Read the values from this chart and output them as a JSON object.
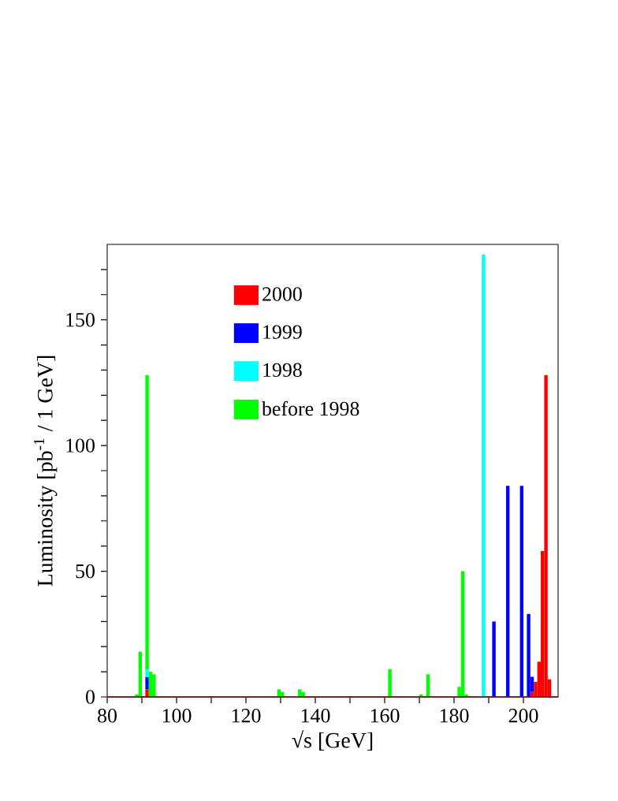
{
  "chart_data": {
    "type": "bar",
    "stacked": true,
    "xlabel": "√s  [GeV]",
    "ylabel": "Luminosity  [pb$^{-1}$ / 1 GeV]",
    "x": [
      88.5,
      89.5,
      91.5,
      92.5,
      93.5,
      129.5,
      130.5,
      135.5,
      136.5,
      161.5,
      170.5,
      172.5,
      181.5,
      182.5,
      183.5,
      188.5,
      191.5,
      195.5,
      199.5,
      201.5,
      202.5,
      203.5,
      204.5,
      205.5,
      206.5,
      207.5
    ],
    "series": [
      {
        "name": "2000",
        "color": "#ff0000",
        "values": [
          null,
          null,
          3,
          null,
          null,
          null,
          null,
          null,
          null,
          null,
          null,
          null,
          null,
          null,
          null,
          null,
          null,
          null,
          null,
          null,
          2,
          6,
          14,
          58,
          128,
          7
        ]
      },
      {
        "name": "1999",
        "color": "#0000ff",
        "values": [
          null,
          null,
          5,
          null,
          null,
          null,
          null,
          null,
          null,
          null,
          null,
          null,
          null,
          null,
          null,
          null,
          30,
          84,
          84,
          33,
          6,
          null,
          null,
          null,
          null,
          null
        ]
      },
      {
        "name": "1998",
        "color": "#00ffff",
        "values": [
          null,
          null,
          3,
          null,
          null,
          null,
          null,
          null,
          null,
          null,
          null,
          null,
          null,
          null,
          null,
          176,
          null,
          null,
          null,
          null,
          null,
          null,
          null,
          null,
          null,
          null
        ]
      },
      {
        "name": "before 1998",
        "color": "#00ff00",
        "values": [
          1,
          18,
          117,
          10,
          9,
          3,
          2,
          3,
          2,
          11,
          1,
          9,
          4,
          50,
          1,
          null,
          null,
          null,
          null,
          null,
          null,
          null,
          null,
          null,
          null,
          null
        ]
      }
    ],
    "xlim": [
      80,
      210
    ],
    "ylim": [
      0,
      180
    ],
    "xticks": [
      80,
      {
        "value": 90,
        "label": null
      },
      100,
      {
        "value": 110,
        "label": null
      },
      120,
      {
        "value": 130,
        "label": null
      },
      140,
      {
        "value": 150,
        "label": null
      },
      160,
      {
        "value": 170,
        "label": null
      },
      180,
      {
        "value": 190,
        "label": null
      },
      200
    ],
    "yticks": [
      0,
      {
        "value": 10,
        "label": null
      },
      {
        "value": 20,
        "label": null
      },
      {
        "value": 30,
        "label": null
      },
      {
        "value": 40,
        "label": null
      },
      50,
      {
        "value": 60,
        "label": null
      },
      {
        "value": 70,
        "label": null
      },
      {
        "value": 80,
        "label": null
      },
      {
        "value": 90,
        "label": null
      },
      100,
      {
        "value": 110,
        "label": null
      },
      {
        "value": 120,
        "label": null
      },
      {
        "value": 130,
        "label": null
      },
      {
        "value": 140,
        "label": null
      },
      150,
      {
        "value": 160,
        "label": null
      },
      {
        "value": 170,
        "label": null
      }
    ],
    "legend": "top"
  }
}
